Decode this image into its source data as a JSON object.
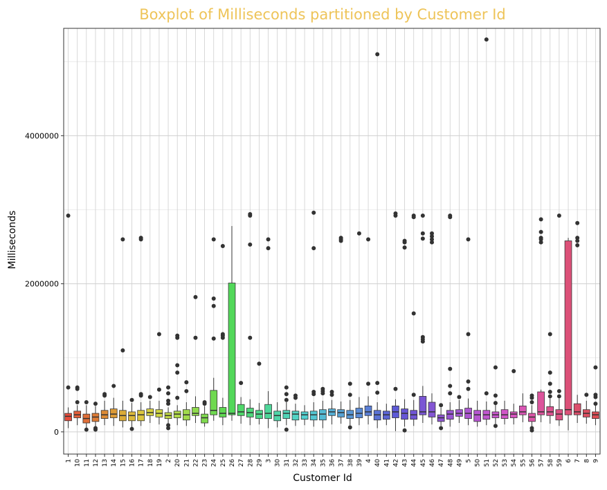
{
  "chart_data": {
    "type": "boxplot",
    "title": "Boxplot of Milliseconds partitioned by Customer Id",
    "xlabel": "Customer Id",
    "ylabel": "Milliseconds",
    "ylim": [
      -300000,
      5450000
    ],
    "yticks": [
      0,
      2000000,
      4000000
    ],
    "ytick_labels": [
      "0",
      "2000000",
      "4000000"
    ],
    "grid": true,
    "legend": "none",
    "colors": {
      "title": "#eec459",
      "panel_border": "#333333",
      "grid_major": "#cfcfcf",
      "grid_minor": "#e6e6e6",
      "outlier": "#333333"
    },
    "categories": [
      "1",
      "10",
      "11",
      "12",
      "13",
      "14",
      "15",
      "16",
      "17",
      "18",
      "19",
      "2",
      "20",
      "21",
      "22",
      "23",
      "24",
      "25",
      "26",
      "27",
      "28",
      "29",
      "3",
      "30",
      "31",
      "32",
      "33",
      "34",
      "35",
      "36",
      "37",
      "38",
      "39",
      "4",
      "40",
      "41",
      "42",
      "43",
      "44",
      "45",
      "46",
      "47",
      "48",
      "49",
      "5",
      "50",
      "51",
      "52",
      "53",
      "54",
      "55",
      "56",
      "57",
      "58",
      "59",
      "6",
      "7",
      "8",
      "9"
    ],
    "boxes": [
      {
        "q1": 150000,
        "median": 210000,
        "q3": 250000,
        "low": 50000,
        "high": 330000,
        "outliers": [
          600000,
          2920000
        ],
        "color": "#e74c3c"
      },
      {
        "q1": 190000,
        "median": 230000,
        "q3": 280000,
        "low": 90000,
        "high": 360000,
        "outliers": [
          400000,
          580000,
          600000
        ],
        "color": "#e35f3a"
      },
      {
        "q1": 120000,
        "median": 180000,
        "q3": 240000,
        "low": 50000,
        "high": 360000,
        "outliers": [
          30000,
          400000
        ],
        "color": "#df6e37"
      },
      {
        "q1": 140000,
        "median": 200000,
        "q3": 250000,
        "low": 70000,
        "high": 350000,
        "outliers": [
          30000,
          50000,
          380000
        ],
        "color": "#dd7b35"
      },
      {
        "q1": 180000,
        "median": 230000,
        "q3": 290000,
        "low": 90000,
        "high": 420000,
        "outliers": [
          490000,
          510000
        ],
        "color": "#dc8a34"
      },
      {
        "q1": 190000,
        "median": 240000,
        "q3": 310000,
        "low": 80000,
        "high": 460000,
        "outliers": [
          620000
        ],
        "color": "#dc9a35"
      },
      {
        "q1": 150000,
        "median": 220000,
        "q3": 290000,
        "low": 60000,
        "high": 420000,
        "outliers": [
          1100000,
          2600000
        ],
        "color": "#dbab37"
      },
      {
        "q1": 150000,
        "median": 220000,
        "q3": 270000,
        "low": 60000,
        "high": 390000,
        "outliers": [
          40000,
          430000
        ],
        "color": "#dcb93a"
      },
      {
        "q1": 150000,
        "median": 230000,
        "q3": 290000,
        "low": 80000,
        "high": 400000,
        "outliers": [
          490000,
          510000,
          2600000,
          2620000
        ],
        "color": "#dcc63e"
      },
      {
        "q1": 220000,
        "median": 260000,
        "q3": 310000,
        "low": 120000,
        "high": 420000,
        "outliers": [
          470000
        ],
        "color": "#d8d241"
      },
      {
        "q1": 200000,
        "median": 250000,
        "q3": 300000,
        "low": 100000,
        "high": 420000,
        "outliers": [
          570000,
          1320000
        ],
        "color": "#cfd743"
      },
      {
        "q1": 180000,
        "median": 220000,
        "q3": 260000,
        "low": 90000,
        "high": 330000,
        "outliers": [
          50000,
          90000,
          380000,
          420000,
          520000,
          600000
        ],
        "color": "#c0d846"
      },
      {
        "q1": 190000,
        "median": 240000,
        "q3": 280000,
        "low": 90000,
        "high": 360000,
        "outliers": [
          460000,
          800000,
          900000,
          1270000,
          1300000
        ],
        "color": "#b0d949"
      },
      {
        "q1": 160000,
        "median": 230000,
        "q3": 300000,
        "low": 80000,
        "high": 400000,
        "outliers": [
          550000,
          670000
        ],
        "color": "#a0da4b"
      },
      {
        "q1": 220000,
        "median": 250000,
        "q3": 330000,
        "low": 120000,
        "high": 480000,
        "outliers": [
          1270000,
          1820000
        ],
        "color": "#8fda4d"
      },
      {
        "q1": 120000,
        "median": 190000,
        "q3": 240000,
        "low": 70000,
        "high": 350000,
        "outliers": [
          380000,
          400000
        ],
        "color": "#7fd94f"
      },
      {
        "q1": 230000,
        "median": 290000,
        "q3": 560000,
        "low": 150000,
        "high": 730000,
        "outliers": [
          1260000,
          1700000,
          1800000,
          2600000
        ],
        "color": "#6fd950"
      },
      {
        "q1": 200000,
        "median": 250000,
        "q3": 330000,
        "low": 90000,
        "high": 460000,
        "outliers": [
          1270000,
          1300000,
          1320000,
          2510000
        ],
        "color": "#5fd852"
      },
      {
        "q1": 230000,
        "median": 250000,
        "q3": 2010000,
        "low": 150000,
        "high": 2780000,
        "outliers": [],
        "color": "#52d85a"
      },
      {
        "q1": 220000,
        "median": 270000,
        "q3": 370000,
        "low": 110000,
        "high": 470000,
        "outliers": [
          660000
        ],
        "color": "#4fd86a"
      },
      {
        "q1": 200000,
        "median": 260000,
        "q3": 320000,
        "low": 90000,
        "high": 440000,
        "outliers": [
          1270000,
          2530000,
          2920000,
          2940000
        ],
        "color": "#4ed77a"
      },
      {
        "q1": 180000,
        "median": 240000,
        "q3": 290000,
        "low": 100000,
        "high": 390000,
        "outliers": [
          920000
        ],
        "color": "#4ed78a"
      },
      {
        "q1": 180000,
        "median": 250000,
        "q3": 370000,
        "low": 50000,
        "high": 550000,
        "outliers": [
          2480000,
          2600000
        ],
        "color": "#4ed699"
      },
      {
        "q1": 150000,
        "median": 220000,
        "q3": 280000,
        "low": 60000,
        "high": 400000,
        "outliers": [],
        "color": "#4fd5a8"
      },
      {
        "q1": 180000,
        "median": 250000,
        "q3": 290000,
        "low": 90000,
        "high": 400000,
        "outliers": [
          30000,
          430000,
          510000,
          600000
        ],
        "color": "#50d4b6"
      },
      {
        "q1": 160000,
        "median": 240000,
        "q3": 280000,
        "low": 80000,
        "high": 380000,
        "outliers": [
          460000,
          490000
        ],
        "color": "#51d3c4"
      },
      {
        "q1": 170000,
        "median": 230000,
        "q3": 270000,
        "low": 90000,
        "high": 360000,
        "outliers": [],
        "color": "#52d1d1"
      },
      {
        "q1": 160000,
        "median": 230000,
        "q3": 280000,
        "low": 70000,
        "high": 400000,
        "outliers": [
          510000,
          540000,
          2480000,
          2960000
        ],
        "color": "#53c6d2"
      },
      {
        "q1": 160000,
        "median": 240000,
        "q3": 300000,
        "low": 50000,
        "high": 420000,
        "outliers": [
          520000,
          550000,
          580000
        ],
        "color": "#54bad3"
      },
      {
        "q1": 220000,
        "median": 270000,
        "q3": 310000,
        "low": 100000,
        "high": 430000,
        "outliers": [
          500000,
          540000
        ],
        "color": "#55aed4"
      },
      {
        "q1": 200000,
        "median": 260000,
        "q3": 300000,
        "low": 110000,
        "high": 410000,
        "outliers": [
          2580000,
          2600000,
          2620000
        ],
        "color": "#57a2d4"
      },
      {
        "q1": 180000,
        "median": 230000,
        "q3": 290000,
        "low": 90000,
        "high": 430000,
        "outliers": [
          60000,
          500000,
          650000
        ],
        "color": "#5896d5"
      },
      {
        "q1": 190000,
        "median": 250000,
        "q3": 320000,
        "low": 90000,
        "high": 470000,
        "outliers": [
          2680000
        ],
        "color": "#598ad5"
      },
      {
        "q1": 220000,
        "median": 270000,
        "q3": 350000,
        "low": 100000,
        "high": 480000,
        "outliers": [
          650000,
          2600000
        ],
        "color": "#5a7ed5"
      },
      {
        "q1": 160000,
        "median": 230000,
        "q3": 290000,
        "low": 50000,
        "high": 400000,
        "outliers": [
          530000,
          660000,
          5100000
        ],
        "color": "#5b72d5"
      },
      {
        "q1": 170000,
        "median": 230000,
        "q3": 280000,
        "low": 90000,
        "high": 380000,
        "outliers": [],
        "color": "#5c66d5"
      },
      {
        "q1": 190000,
        "median": 270000,
        "q3": 350000,
        "low": 10000,
        "high": 440000,
        "outliers": [
          580000,
          2920000,
          2950000
        ],
        "color": "#5d5ad5"
      },
      {
        "q1": 170000,
        "median": 250000,
        "q3": 310000,
        "low": 70000,
        "high": 440000,
        "outliers": [
          20000,
          2490000,
          2560000,
          2580000
        ],
        "color": "#6656d5"
      },
      {
        "q1": 170000,
        "median": 230000,
        "q3": 290000,
        "low": 80000,
        "high": 430000,
        "outliers": [
          500000,
          1600000,
          2900000,
          2920000
        ],
        "color": "#7056d5"
      },
      {
        "q1": 230000,
        "median": 270000,
        "q3": 480000,
        "low": 120000,
        "high": 620000,
        "outliers": [
          1220000,
          1250000,
          1280000,
          2610000,
          2680000,
          2920000
        ],
        "color": "#7a56d4"
      },
      {
        "q1": 200000,
        "median": 270000,
        "q3": 400000,
        "low": 100000,
        "high": 520000,
        "outliers": [
          2560000,
          2600000,
          2640000,
          2680000
        ],
        "color": "#8456d4"
      },
      {
        "q1": 140000,
        "median": 190000,
        "q3": 230000,
        "low": 80000,
        "high": 330000,
        "outliers": [
          50000,
          360000
        ],
        "color": "#8e56d3"
      },
      {
        "q1": 170000,
        "median": 240000,
        "q3": 290000,
        "low": 70000,
        "high": 400000,
        "outliers": [
          520000,
          620000,
          850000,
          2900000,
          2920000
        ],
        "color": "#9856d3"
      },
      {
        "q1": 210000,
        "median": 250000,
        "q3": 300000,
        "low": 120000,
        "high": 430000,
        "outliers": [
          470000
        ],
        "color": "#a256d2"
      },
      {
        "q1": 180000,
        "median": 250000,
        "q3": 320000,
        "low": 90000,
        "high": 450000,
        "outliers": [
          580000,
          680000,
          1320000,
          2600000
        ],
        "color": "#ac56d1"
      },
      {
        "q1": 140000,
        "median": 230000,
        "q3": 290000,
        "low": 70000,
        "high": 420000,
        "outliers": [],
        "color": "#b656d0"
      },
      {
        "q1": 170000,
        "median": 230000,
        "q3": 290000,
        "low": 90000,
        "high": 410000,
        "outliers": [
          520000,
          5300000
        ],
        "color": "#c056cf"
      },
      {
        "q1": 190000,
        "median": 230000,
        "q3": 270000,
        "low": 110000,
        "high": 370000,
        "outliers": [
          80000,
          390000,
          490000,
          870000
        ],
        "color": "#c956cd"
      },
      {
        "q1": 180000,
        "median": 230000,
        "q3": 300000,
        "low": 100000,
        "high": 420000,
        "outliers": [],
        "color": "#d156c8"
      },
      {
        "q1": 190000,
        "median": 240000,
        "q3": 270000,
        "low": 100000,
        "high": 380000,
        "outliers": [
          820000
        ],
        "color": "#d656bf"
      },
      {
        "q1": 230000,
        "median": 270000,
        "q3": 350000,
        "low": 130000,
        "high": 520000,
        "outliers": [],
        "color": "#d956b4"
      },
      {
        "q1": 140000,
        "median": 200000,
        "q3": 250000,
        "low": 70000,
        "high": 360000,
        "outliers": [
          20000,
          50000,
          400000,
          460000,
          490000
        ],
        "color": "#db55a8"
      },
      {
        "q1": 230000,
        "median": 270000,
        "q3": 540000,
        "low": 130000,
        "high": 570000,
        "outliers": [
          2560000,
          2600000,
          2620000,
          2700000,
          2870000
        ],
        "color": "#dc549c"
      },
      {
        "q1": 220000,
        "median": 270000,
        "q3": 340000,
        "low": 110000,
        "high": 450000,
        "outliers": [
          480000,
          540000,
          650000,
          800000,
          1320000
        ],
        "color": "#dc5390"
      },
      {
        "q1": 160000,
        "median": 240000,
        "q3": 300000,
        "low": 80000,
        "high": 450000,
        "outliers": [
          480000,
          550000,
          2920000
        ],
        "color": "#dc5284"
      },
      {
        "q1": 230000,
        "median": 300000,
        "q3": 2580000,
        "low": 20000,
        "high": 2620000,
        "outliers": [],
        "color": "#dc5078"
      },
      {
        "q1": 230000,
        "median": 270000,
        "q3": 380000,
        "low": 120000,
        "high": 500000,
        "outliers": [
          2520000,
          2580000,
          2620000,
          2820000
        ],
        "color": "#dc4f6c"
      },
      {
        "q1": 200000,
        "median": 250000,
        "q3": 300000,
        "low": 110000,
        "high": 420000,
        "outliers": [
          500000
        ],
        "color": "#dc4e60"
      },
      {
        "q1": 180000,
        "median": 230000,
        "q3": 270000,
        "low": 90000,
        "high": 360000,
        "outliers": [
          380000,
          470000,
          500000,
          870000
        ],
        "color": "#dc4d54"
      }
    ]
  }
}
